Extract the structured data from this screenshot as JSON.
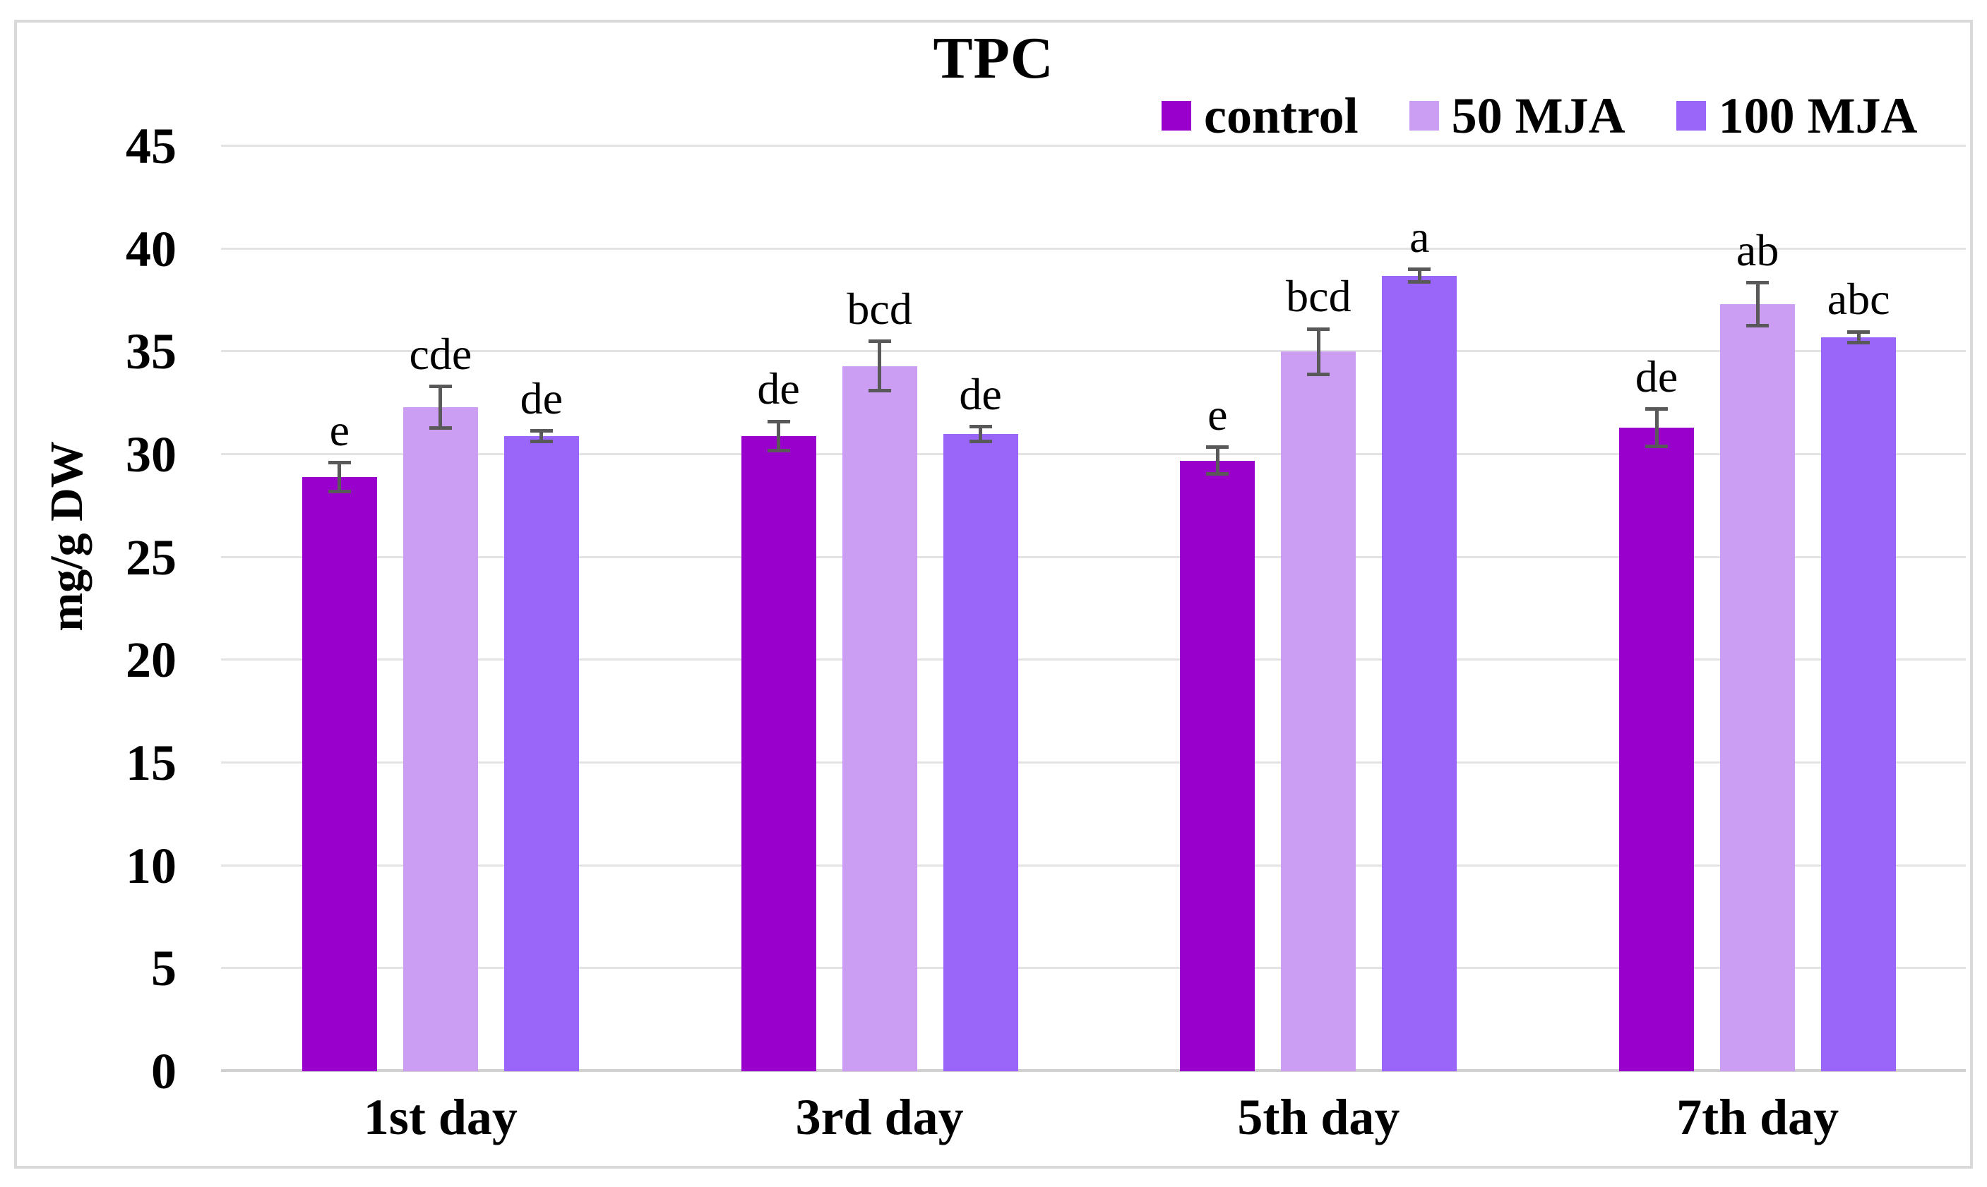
{
  "chart_data": {
    "type": "bar",
    "title": "TPC",
    "ylabel": "mg/g DW",
    "xlabel": "",
    "categories": [
      "1st day",
      "3rd day",
      "5th day",
      "7th day"
    ],
    "y_ticks": [
      0,
      5,
      10,
      15,
      20,
      25,
      30,
      35,
      40,
      45
    ],
    "ylim": [
      0,
      45
    ],
    "grid": true,
    "legend_position": "top-right",
    "series": [
      {
        "name": "control",
        "color": "#9a00cc",
        "values": [
          28.9,
          30.9,
          29.7,
          31.3
        ],
        "errors": [
          0.7,
          0.7,
          0.65,
          0.9
        ],
        "letters": [
          "e",
          "de",
          "e",
          "de"
        ]
      },
      {
        "name": "50 MJA",
        "color": "#cb9df3",
        "values": [
          32.3,
          34.3,
          35.0,
          37.3
        ],
        "errors": [
          1.0,
          1.2,
          1.1,
          1.05
        ],
        "letters": [
          "cde",
          "bcd",
          "bcd",
          "ab"
        ]
      },
      {
        "name": "100 MJA",
        "color": "#9966f9",
        "values": [
          30.9,
          31.0,
          38.7,
          35.7
        ],
        "errors": [
          0.25,
          0.35,
          0.3,
          0.26
        ],
        "letters": [
          "de",
          "de",
          "a",
          "abc"
        ]
      }
    ],
    "colors": {
      "gridline": "#e3e3e3",
      "axis_line": "#d0d0d0",
      "error_bar": "#595959",
      "text": "#000000",
      "figure_border": "#d9d9d9",
      "background": "#ffffff"
    }
  }
}
